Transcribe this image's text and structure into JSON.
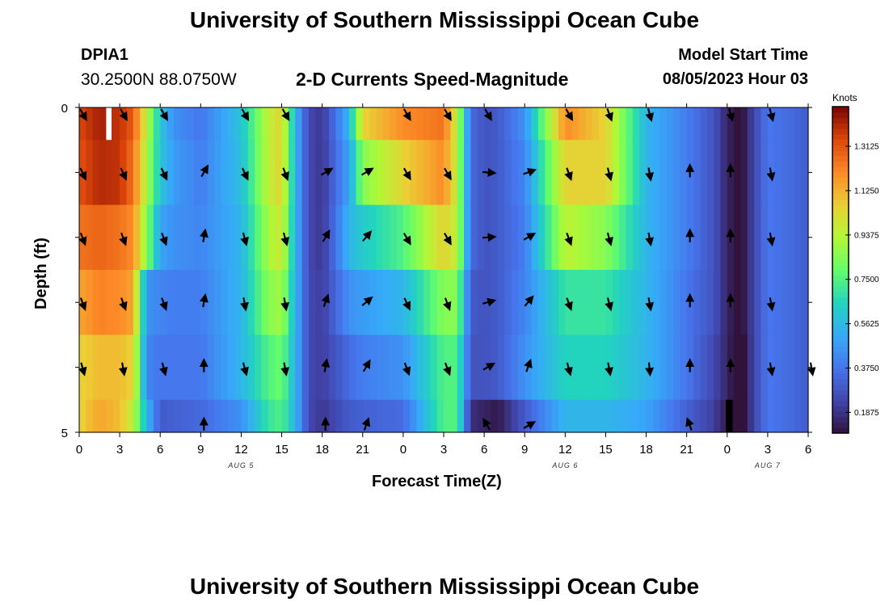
{
  "page": {
    "title": "University of Southern Mississippi Ocean Cube",
    "title_repeat": "University of Southern Mississippi Ocean Cube",
    "station_id": "DPIA1",
    "coordinates": "30.2500N  88.0750W",
    "subtitle": "2-D Currents Speed-Magnitude",
    "model_start_label": "Model Start Time",
    "model_start_value": "08/05/2023 Hour 03"
  },
  "chart_data": {
    "type": "heatmap",
    "title": "2-D Currents Speed-Magnitude",
    "xlabel": "Forecast Time(Z)",
    "ylabel": "Depth (ft)",
    "xlim": [
      0,
      54
    ],
    "ylim": [
      0,
      5
    ],
    "x_ticks": [
      0,
      3,
      6,
      9,
      12,
      15,
      18,
      21,
      24,
      27,
      30,
      33,
      36,
      39,
      42,
      45,
      48,
      51,
      54
    ],
    "x_tick_labels": [
      "0",
      "3",
      "6",
      "9",
      "12",
      "15",
      "18",
      "21",
      "0",
      "3",
      "6",
      "9",
      "12",
      "15",
      "18",
      "21",
      "0",
      "3",
      "6"
    ],
    "y_tick_labels": [
      "0",
      "5"
    ],
    "date_labels": [
      {
        "hour": 12,
        "text": "AUG 5"
      },
      {
        "hour": 36,
        "text": "AUG 6"
      },
      {
        "hour": 51,
        "text": "AUG 7"
      }
    ],
    "colorbar": {
      "label": "Knots",
      "min": 0.1,
      "max": 1.48,
      "ticks": [
        0.1875,
        0.375,
        0.5625,
        0.75,
        0.9375,
        1.125,
        1.3125
      ],
      "tick_labels": [
        "0.1875",
        "0.3750",
        "0.5625",
        "0.7500",
        "0.9375",
        "1.1250",
        "1.3125"
      ]
    },
    "depth_layers": [
      0,
      1,
      2,
      3,
      4,
      5
    ],
    "speed_profile_hours": [
      0,
      1.5,
      3,
      4,
      5,
      6,
      7,
      9,
      12,
      14,
      15,
      16,
      17,
      18,
      20,
      21,
      24,
      27,
      28,
      29,
      30,
      31,
      33,
      36,
      39,
      42,
      45,
      47,
      48,
      49,
      50,
      51,
      53,
      54
    ],
    "speed_profile_knots": [
      [
        1.34,
        1.42,
        1.38,
        1.3,
        0.95,
        0.6,
        0.45,
        0.38,
        0.6,
        0.95,
        1.05,
        0.55,
        0.25,
        0.2,
        0.55,
        1.05,
        1.2,
        1.25,
        0.95,
        0.35,
        0.28,
        0.3,
        0.45,
        1.2,
        1.05,
        0.55,
        0.4,
        0.28,
        0.15,
        0.08,
        0.25,
        0.38,
        0.34,
        0.3
      ],
      [
        1.32,
        1.4,
        1.38,
        1.25,
        0.92,
        0.6,
        0.48,
        0.4,
        0.58,
        0.95,
        1.05,
        0.55,
        0.25,
        0.2,
        0.5,
        0.85,
        1.05,
        1.2,
        0.95,
        0.35,
        0.28,
        0.3,
        0.42,
        1.05,
        1.05,
        0.55,
        0.4,
        0.28,
        0.15,
        0.08,
        0.25,
        0.38,
        0.34,
        0.3
      ],
      [
        1.25,
        1.28,
        1.25,
        1.2,
        0.85,
        0.5,
        0.45,
        0.42,
        0.55,
        0.9,
        1.0,
        0.55,
        0.25,
        0.2,
        0.55,
        0.62,
        0.75,
        1.05,
        0.95,
        0.35,
        0.28,
        0.3,
        0.4,
        0.95,
        0.85,
        0.55,
        0.4,
        0.28,
        0.15,
        0.08,
        0.25,
        0.38,
        0.34,
        0.3
      ],
      [
        1.15,
        1.22,
        1.2,
        1.15,
        0.45,
        0.42,
        0.4,
        0.4,
        0.55,
        0.85,
        0.9,
        0.55,
        0.25,
        0.22,
        0.45,
        0.48,
        0.55,
        0.85,
        0.85,
        0.3,
        0.28,
        0.3,
        0.42,
        0.7,
        0.7,
        0.55,
        0.38,
        0.28,
        0.15,
        0.08,
        0.25,
        0.38,
        0.34,
        0.3
      ],
      [
        1.05,
        1.1,
        1.1,
        1.05,
        0.42,
        0.38,
        0.38,
        0.38,
        0.55,
        0.75,
        0.8,
        0.55,
        0.25,
        0.22,
        0.35,
        0.4,
        0.45,
        0.75,
        0.75,
        0.28,
        0.28,
        0.3,
        0.45,
        0.65,
        0.65,
        0.55,
        0.38,
        0.25,
        0.15,
        0.05,
        0.25,
        0.38,
        0.34,
        0.3
      ],
      [
        1.05,
        1.15,
        1.1,
        0.95,
        0.55,
        0.3,
        0.32,
        0.34,
        0.45,
        0.7,
        0.75,
        0.55,
        0.25,
        0.2,
        0.3,
        0.32,
        0.35,
        0.75,
        0.75,
        0.18,
        0.15,
        0.12,
        0.3,
        0.55,
        0.55,
        0.5,
        0.32,
        0.22,
        0.12,
        0.04,
        0.25,
        0.38,
        0.34,
        0.3
      ]
    ],
    "arrow_rows_depth": [
      0,
      1,
      2,
      3,
      4,
      5
    ],
    "arrow_hours": [
      0,
      3,
      6,
      9,
      12,
      15,
      18,
      21,
      24,
      27,
      30,
      33,
      36,
      39,
      42,
      45,
      48,
      51,
      54
    ],
    "arrow_direction_deg": [
      [
        150,
        150,
        150,
        null,
        150,
        150,
        null,
        null,
        150,
        150,
        150,
        null,
        150,
        160,
        165,
        null,
        165,
        165,
        null
      ],
      [
        155,
        155,
        155,
        30,
        155,
        160,
        60,
        60,
        150,
        150,
        95,
        70,
        160,
        165,
        170,
        0,
        0,
        170,
        null
      ],
      [
        160,
        160,
        160,
        10,
        165,
        165,
        30,
        40,
        150,
        150,
        85,
        60,
        160,
        165,
        170,
        0,
        0,
        170,
        null
      ],
      [
        160,
        160,
        160,
        10,
        170,
        170,
        20,
        50,
        155,
        160,
        75,
        40,
        160,
        165,
        170,
        0,
        0,
        170,
        null
      ],
      [
        165,
        170,
        165,
        0,
        165,
        170,
        10,
        30,
        160,
        160,
        60,
        20,
        165,
        170,
        175,
        0,
        0,
        170,
        170
      ],
      [
        null,
        null,
        null,
        0,
        null,
        null,
        0,
        20,
        null,
        null,
        -30,
        60,
        null,
        null,
        null,
        -20,
        null,
        null,
        null
      ]
    ],
    "missing_data": [
      {
        "hour_start": 2,
        "hour_end": 2.4,
        "depth_start": 0,
        "depth_end": 0.5
      }
    ],
    "dark_cell": {
      "hour_start": 47.9,
      "hour_end": 48.4,
      "depth_start": 4.5,
      "depth_end": 5
    }
  }
}
